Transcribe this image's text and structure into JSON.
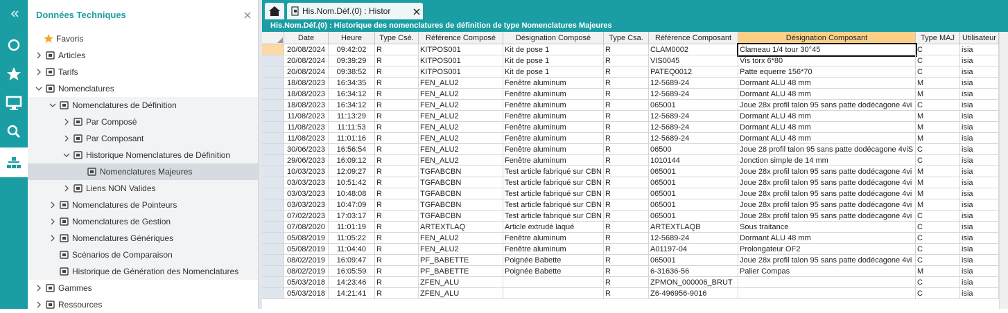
{
  "sidebar": {
    "title": "Données Techniques",
    "tree": [
      "Favoris",
      "Articles",
      "Tarifs",
      "Nomenclatures",
      "Nomenclatures de Définition",
      "Par Composé",
      "Par Composant",
      "Historique Nomenclatures de Définition",
      "Nomenclatures Majeures",
      "Liens NON Valides",
      "Nomenclatures de Pointeurs",
      "Nomenclatures de Gestion",
      "Nomenclatures Génériques",
      "Scénarios de Comparaison",
      "Historique de Génération des Nomenclatures",
      "Gammes",
      "Ressources"
    ]
  },
  "tabs": [
    "His.Nom.Déf.(0) : Histor"
  ],
  "panel": {
    "title": "His.Nom.Déf.(0) : Historique des nomenclatures de définition de type Nomenclatures Majeures"
  },
  "table": {
    "columns": [
      "Date",
      "Heure",
      "Type Csé.",
      "Référence Composé",
      "Désignation Composé",
      "Type Csa.",
      "Référence Composant",
      "Désignation Composant",
      "Type MAJ",
      "Utilisateur"
    ],
    "rows": [
      [
        "20/08/2024",
        "09:42:02",
        "R",
        "KITPOS001",
        "Kit de pose 1",
        "R",
        "CLAM0002",
        "Clameau 1/4 tour 30°45",
        "C",
        "isia"
      ],
      [
        "20/08/2024",
        "09:39:29",
        "R",
        "KITPOS001",
        "Kit de pose 1",
        "R",
        "VIS0045",
        "Vis torx 6*80",
        "C",
        "isia"
      ],
      [
        "20/08/2024",
        "09:38:52",
        "R",
        "KITPOS001",
        "Kit de pose 1",
        "R",
        "PATEQ0012",
        "Patte equerre 156*70",
        "C",
        "isia"
      ],
      [
        "18/08/2023",
        "16:34:35",
        "R",
        "FEN_ALU2",
        "Fenêtre aluminum",
        "R",
        "12-5689-24",
        "Dormant ALU 48 mm",
        "M",
        "isia"
      ],
      [
        "18/08/2023",
        "16:34:12",
        "R",
        "FEN_ALU2",
        "Fenêtre aluminum",
        "R",
        "12-5689-24",
        "Dormant ALU 48 mm",
        "M",
        "isia"
      ],
      [
        "18/08/2023",
        "16:34:12",
        "R",
        "FEN_ALU2",
        "Fenêtre aluminum",
        "R",
        "065001",
        "Joue 28x profil talon 95 sans patte dodécagone 4vi",
        "C",
        "isia"
      ],
      [
        "11/08/2023",
        "11:13:29",
        "R",
        "FEN_ALU2",
        "Fenêtre aluminum",
        "R",
        "12-5689-24",
        "Dormant ALU 48 mm",
        "M",
        "isia"
      ],
      [
        "11/08/2023",
        "11:11:53",
        "R",
        "FEN_ALU2",
        "Fenêtre aluminum",
        "R",
        "12-5689-24",
        "Dormant ALU 48 mm",
        "M",
        "isia"
      ],
      [
        "11/08/2023",
        "11:01:16",
        "R",
        "FEN_ALU2",
        "Fenêtre aluminum",
        "R",
        "12-5689-24",
        "Dormant ALU 48 mm",
        "M",
        "isia"
      ],
      [
        "30/06/2023",
        "16:56:54",
        "R",
        "FEN_ALU2",
        "Fenêtre aluminum",
        "R",
        "06500",
        "Joue 28 profil talon 95 sans patte dodécagone 4viS",
        "C",
        "isia"
      ],
      [
        "29/06/2023",
        "16:09:12",
        "R",
        "FEN_ALU2",
        "Fenêtre aluminum",
        "R",
        "1010144",
        "Jonction simple de 14 mm",
        "C",
        "isia"
      ],
      [
        "10/03/2023",
        "12:09:27",
        "R",
        "TGFABCBN",
        "Test article fabriqué sur CBN",
        "R",
        "065001",
        "Joue 28x profil talon 95 sans patte dodécagone 4vi",
        "M",
        "isia"
      ],
      [
        "03/03/2023",
        "10:51:42",
        "R",
        "TGFABCBN",
        "Test article fabriqué sur CBN",
        "R",
        "065001",
        "Joue 28x profil talon 95 sans patte dodécagone 4vi",
        "M",
        "isia"
      ],
      [
        "03/03/2023",
        "10:48:08",
        "R",
        "TGFABCBN",
        "Test article fabriqué sur CBN",
        "R",
        "065001",
        "Joue 28x profil talon 95 sans patte dodécagone 4vi",
        "M",
        "isia"
      ],
      [
        "03/03/2023",
        "10:47:09",
        "R",
        "TGFABCBN",
        "Test article fabriqué sur CBN",
        "R",
        "065001",
        "Joue 28x profil talon 95 sans patte dodécagone 4vi",
        "M",
        "isia"
      ],
      [
        "07/02/2023",
        "17:03:17",
        "R",
        "TGFABCBN",
        "Test article fabriqué sur CBN",
        "R",
        "065001",
        "Joue 28x profil talon 95 sans patte dodécagone 4vi",
        "C",
        "isia"
      ],
      [
        "07/08/2020",
        "11:01:19",
        "R",
        "ARTEXTLAQ",
        "Article extrudé laqué",
        "R",
        "ARTEXTLAQB",
        "Sous traitance",
        "C",
        "isia"
      ],
      [
        "05/08/2019",
        "11:05:22",
        "R",
        "FEN_ALU2",
        "Fenêtre aluminum",
        "R",
        "12-5689-24",
        "Dormant ALU 48 mm",
        "C",
        "isia"
      ],
      [
        "05/08/2019",
        "11:04:40",
        "R",
        "FEN_ALU2",
        "Fenêtre aluminum",
        "R",
        "A01197-04",
        "Prolongateur OF2",
        "C",
        "isia"
      ],
      [
        "08/02/2019",
        "16:09:47",
        "R",
        "PF_BABETTE",
        "Poignée Babette",
        "R",
        "065001",
        "Joue 28x profil talon 95 sans patte dodécagone 4vi",
        "C",
        "isia"
      ],
      [
        "08/02/2019",
        "16:05:59",
        "R",
        "PF_BABETTE",
        "Poignée Babette",
        "R",
        "6-31636-56",
        "Palier Compas",
        "M",
        "isia"
      ],
      [
        "05/03/2018",
        "14:23:46",
        "R",
        "ZFEN_ALU",
        null,
        "R",
        "ZPMON_000006_BRUT",
        null,
        "C",
        "isia"
      ],
      [
        "05/03/2018",
        "14:21:41",
        "R",
        "ZFEN_ALU",
        null,
        "R",
        "Z6-496956-9016",
        null,
        "C",
        "isia"
      ]
    ]
  }
}
